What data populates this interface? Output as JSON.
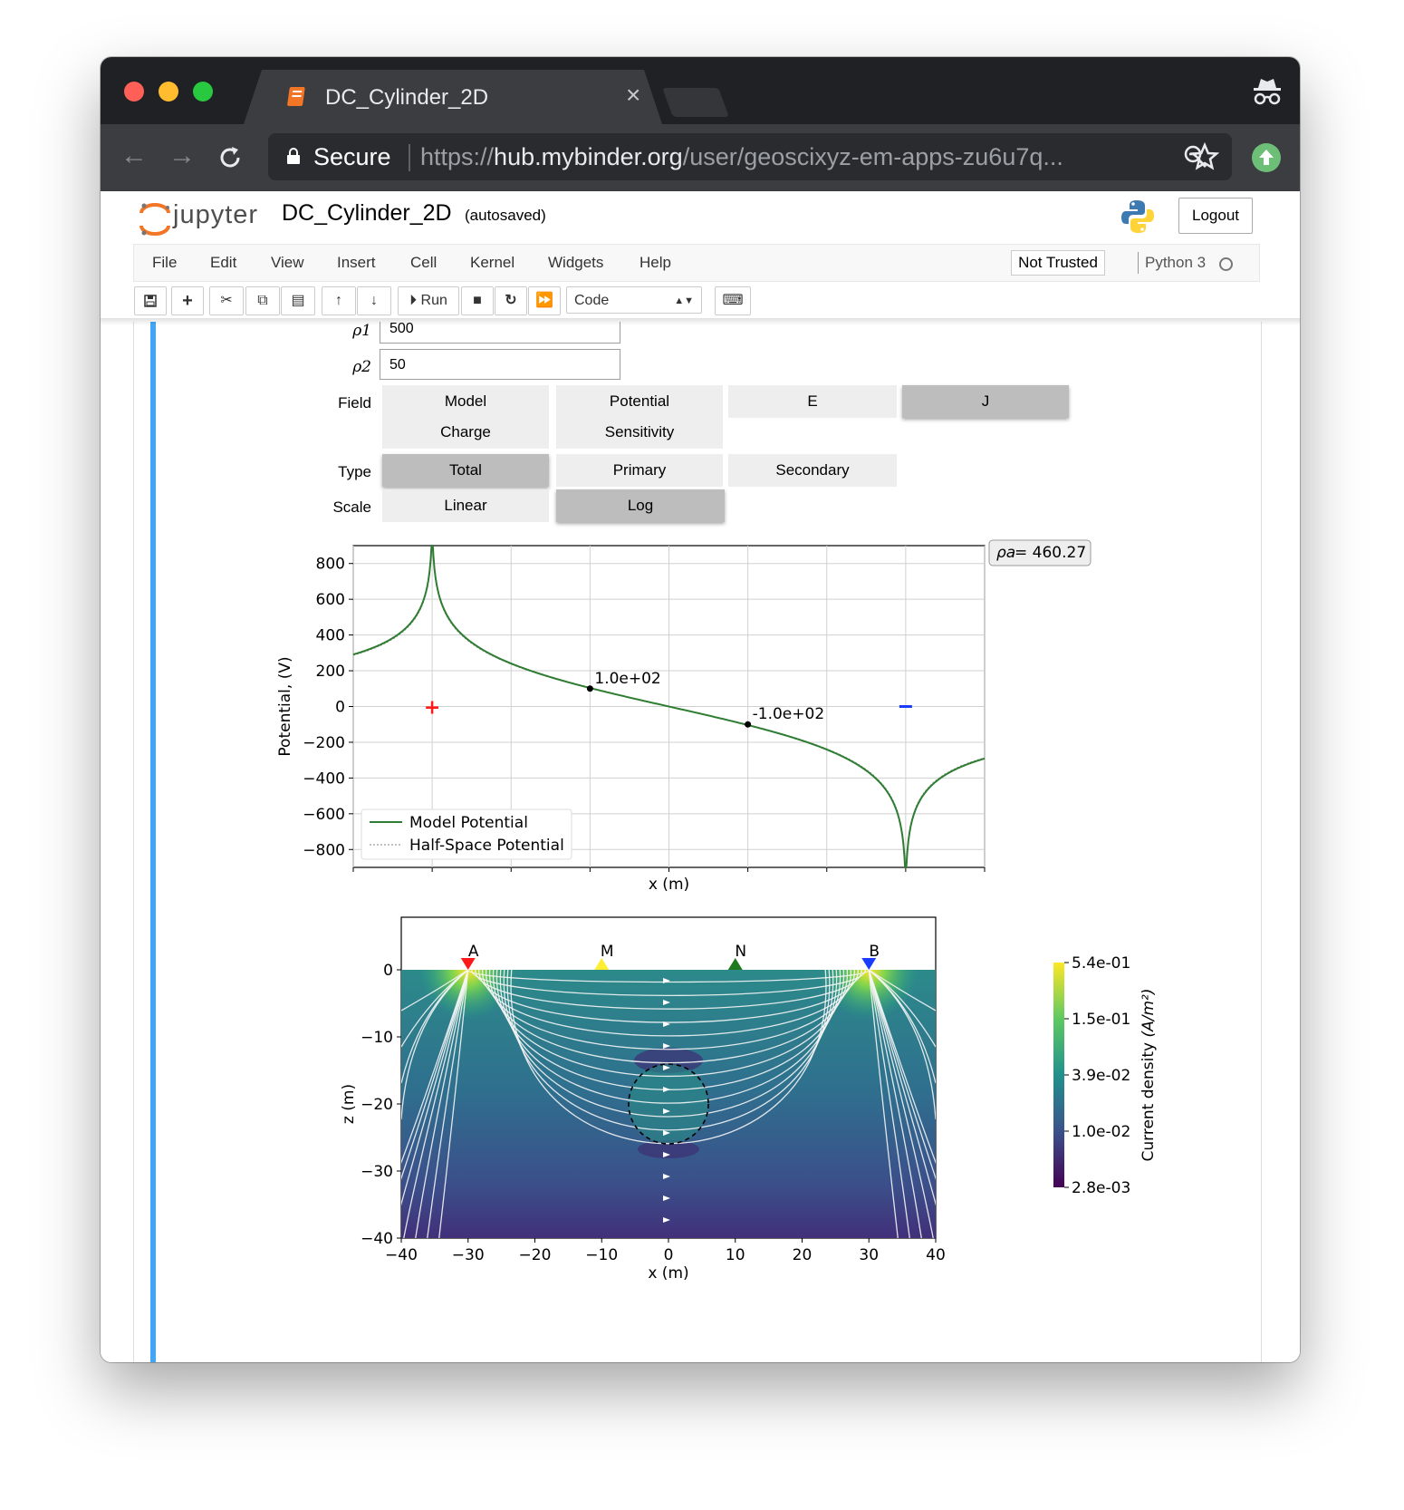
{
  "browser": {
    "tab_title": "DC_Cylinder_2D",
    "tab_close": "×",
    "secure_label": "Secure",
    "url_scheme": "https://",
    "url_host": "hub.mybinder.org",
    "url_path": "/user/geoscixyz-em-apps-zu6u7q..."
  },
  "jupyter": {
    "logo_text": "jupyter",
    "notebook_name": "DC_Cylinder_2D",
    "autosave_status": "(autosaved)",
    "logout_label": "Logout",
    "menu": [
      "File",
      "Edit",
      "View",
      "Insert",
      "Cell",
      "Kernel",
      "Widgets",
      "Help"
    ],
    "trust_label": "Not Trusted",
    "kernel_name": "Python 3",
    "toolbar": {
      "run_label": "Run",
      "cell_type": "Code"
    }
  },
  "widgets": {
    "rho1_label": "ρ1",
    "rho1_value": "500",
    "rho2_label": "ρ2",
    "rho2_value": "50",
    "field_label": "Field",
    "field_options": [
      "Model",
      "Potential",
      "E",
      "J",
      "Charge",
      "Sensitivity"
    ],
    "field_selected": "J",
    "type_label": "Type",
    "type_options": [
      "Total",
      "Primary",
      "Secondary"
    ],
    "type_selected": "Total",
    "scale_label": "Scale",
    "scale_options": [
      "Linear",
      "Log"
    ],
    "scale_selected": "Log"
  },
  "chart_data": [
    {
      "type": "line",
      "xlabel": "x (m)",
      "ylabel": "Potential, (V)",
      "xlim": [
        -40,
        40
      ],
      "ylim": [
        -900,
        900
      ],
      "yticks": [
        800,
        600,
        400,
        200,
        0,
        -200,
        -400,
        -600,
        -800
      ],
      "grid": true,
      "legend_position": "lower-left",
      "series": [
        {
          "name": "Model Potential",
          "color": "#2e7d32"
        },
        {
          "name": "Half-Space Potential",
          "color": "#9e9e9e"
        }
      ],
      "source_x": -30,
      "sink_x": 30,
      "annotations": [
        {
          "x": -10,
          "y": 100,
          "text": "1.0e+02"
        },
        {
          "x": 10,
          "y": -100,
          "text": "-1.0e+02"
        }
      ],
      "apparent_resistivity_label": "= 460.27"
    },
    {
      "type": "heatmap",
      "xlabel": "x (m)",
      "ylabel": "z (m)",
      "xlim": [
        -40,
        40
      ],
      "ylim": [
        -40,
        0
      ],
      "xticks": [
        -40,
        -30,
        -20,
        -10,
        0,
        10,
        20,
        30,
        40
      ],
      "yticks": [
        0,
        -10,
        -20,
        -30,
        -40
      ],
      "electrodes": [
        {
          "label": "A",
          "x": -30,
          "color": "#ff1a1a"
        },
        {
          "label": "M",
          "x": -10,
          "color": "#ffee33"
        },
        {
          "label": "N",
          "x": 10,
          "color": "#1f7a1f"
        },
        {
          "label": "B",
          "x": 30,
          "color": "#1a3cff"
        }
      ],
      "cylinder": {
        "x": 0,
        "z": -20,
        "radius": 6
      },
      "colorbar": {
        "label": "Current density",
        "unit": "(A/m²)",
        "ticks": [
          "5.4e-01",
          "1.5e-01",
          "3.9e-02",
          "1.0e-02",
          "2.8e-03"
        ]
      }
    }
  ]
}
